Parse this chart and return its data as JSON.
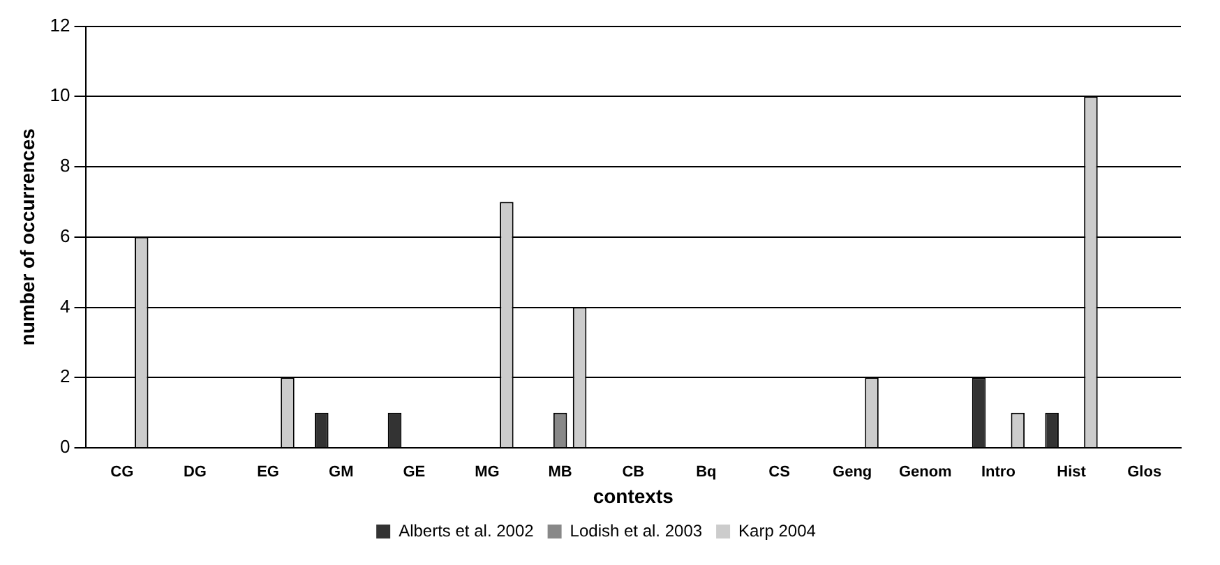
{
  "chart_data": {
    "type": "bar",
    "xlabel": "contexts",
    "ylabel": "number of occurrences",
    "categories": [
      "CG",
      "DG",
      "EG",
      "GM",
      "GE",
      "MG",
      "MB",
      "CB",
      "Bq",
      "CS",
      "Geng",
      "Genom",
      "Intro",
      "Hist",
      "Glos"
    ],
    "series": [
      {
        "name": "Alberts et al. 2002",
        "color": "#333333",
        "values": [
          0,
          0,
          0,
          1,
          1,
          0,
          0,
          0,
          0,
          0,
          0,
          0,
          2,
          1,
          0
        ]
      },
      {
        "name": "Lodish et al. 2003",
        "color": "#888888",
        "values": [
          0,
          0,
          0,
          0,
          0,
          0,
          1,
          0,
          0,
          0,
          0,
          0,
          0,
          0,
          0
        ]
      },
      {
        "name": "Karp 2004",
        "color": "#cccccc",
        "values": [
          6,
          0,
          2,
          0,
          0,
          7,
          4,
          0,
          0,
          0,
          2,
          0,
          1,
          10,
          0
        ]
      }
    ],
    "ylim": [
      0,
      12
    ],
    "yticks": [
      0,
      2,
      4,
      6,
      8,
      10,
      12
    ],
    "grid": "y",
    "legend": "bottom"
  }
}
